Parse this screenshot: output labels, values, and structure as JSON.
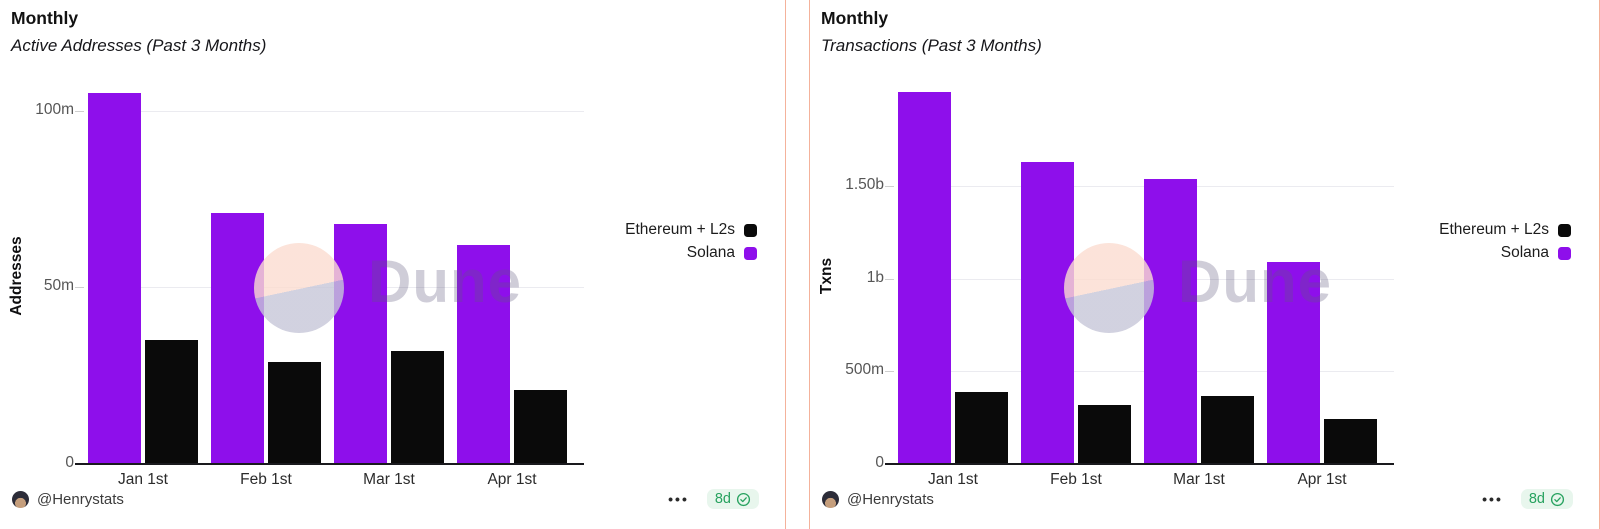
{
  "page": {
    "background": "#ffffff",
    "divider_color": "#f4b29b"
  },
  "watermark": {
    "text": "Dune"
  },
  "footer": {
    "author": "@Henrystats",
    "menu_dots": "•••",
    "age": "8d"
  },
  "colors": {
    "solana": "#8E0FEB",
    "ethereum_l2s": "#0a0a0a",
    "badge_text": "#27a25f",
    "badge_bg": "#e8f6ed"
  },
  "chart_data": [
    {
      "type": "bar",
      "title": "Monthly",
      "subtitle": "Active Addresses (Past 3 Months)",
      "ylabel": "Addresses",
      "xlabel": "",
      "unit": "millions",
      "categories": [
        "Jan 1st",
        "Feb 1st",
        "Mar 1st",
        "Apr 1st"
      ],
      "series": [
        {
          "name": "Solana",
          "color": "#8E0FEB",
          "values": [
            105,
            71,
            68,
            62
          ]
        },
        {
          "name": "Ethereum + L2s",
          "color": "#0a0a0a",
          "values": [
            35,
            29,
            32,
            21
          ]
        }
      ],
      "legend": [
        "Ethereum + L2s",
        "Solana"
      ],
      "legend_position": "right",
      "grid": "horizontal",
      "ylim": [
        0,
        107
      ],
      "yticks": [
        {
          "value": 0,
          "label": "0"
        },
        {
          "value": 50,
          "label": "50m"
        },
        {
          "value": 100,
          "label": "100m"
        }
      ]
    },
    {
      "type": "bar",
      "title": "Monthly",
      "subtitle": "Transactions (Past 3 Months)",
      "ylabel": "Txns",
      "xlabel": "",
      "unit": "millions",
      "categories": [
        "Jan 1st",
        "Feb 1st",
        "Mar 1st",
        "Apr 1st"
      ],
      "series": [
        {
          "name": "Solana",
          "color": "#8E0FEB",
          "values": [
            2010,
            1630,
            1540,
            1090
          ]
        },
        {
          "name": "Ethereum + L2s",
          "color": "#0a0a0a",
          "values": [
            390,
            320,
            365,
            245
          ]
        }
      ],
      "legend": [
        "Ethereum + L2s",
        "Solana"
      ],
      "legend_position": "right",
      "grid": "horizontal",
      "ylim": [
        0,
        2040
      ],
      "yticks": [
        {
          "value": 0,
          "label": "0"
        },
        {
          "value": 500,
          "label": "500m"
        },
        {
          "value": 1000,
          "label": "1b"
        },
        {
          "value": 1500,
          "label": "1.50b"
        }
      ]
    }
  ]
}
